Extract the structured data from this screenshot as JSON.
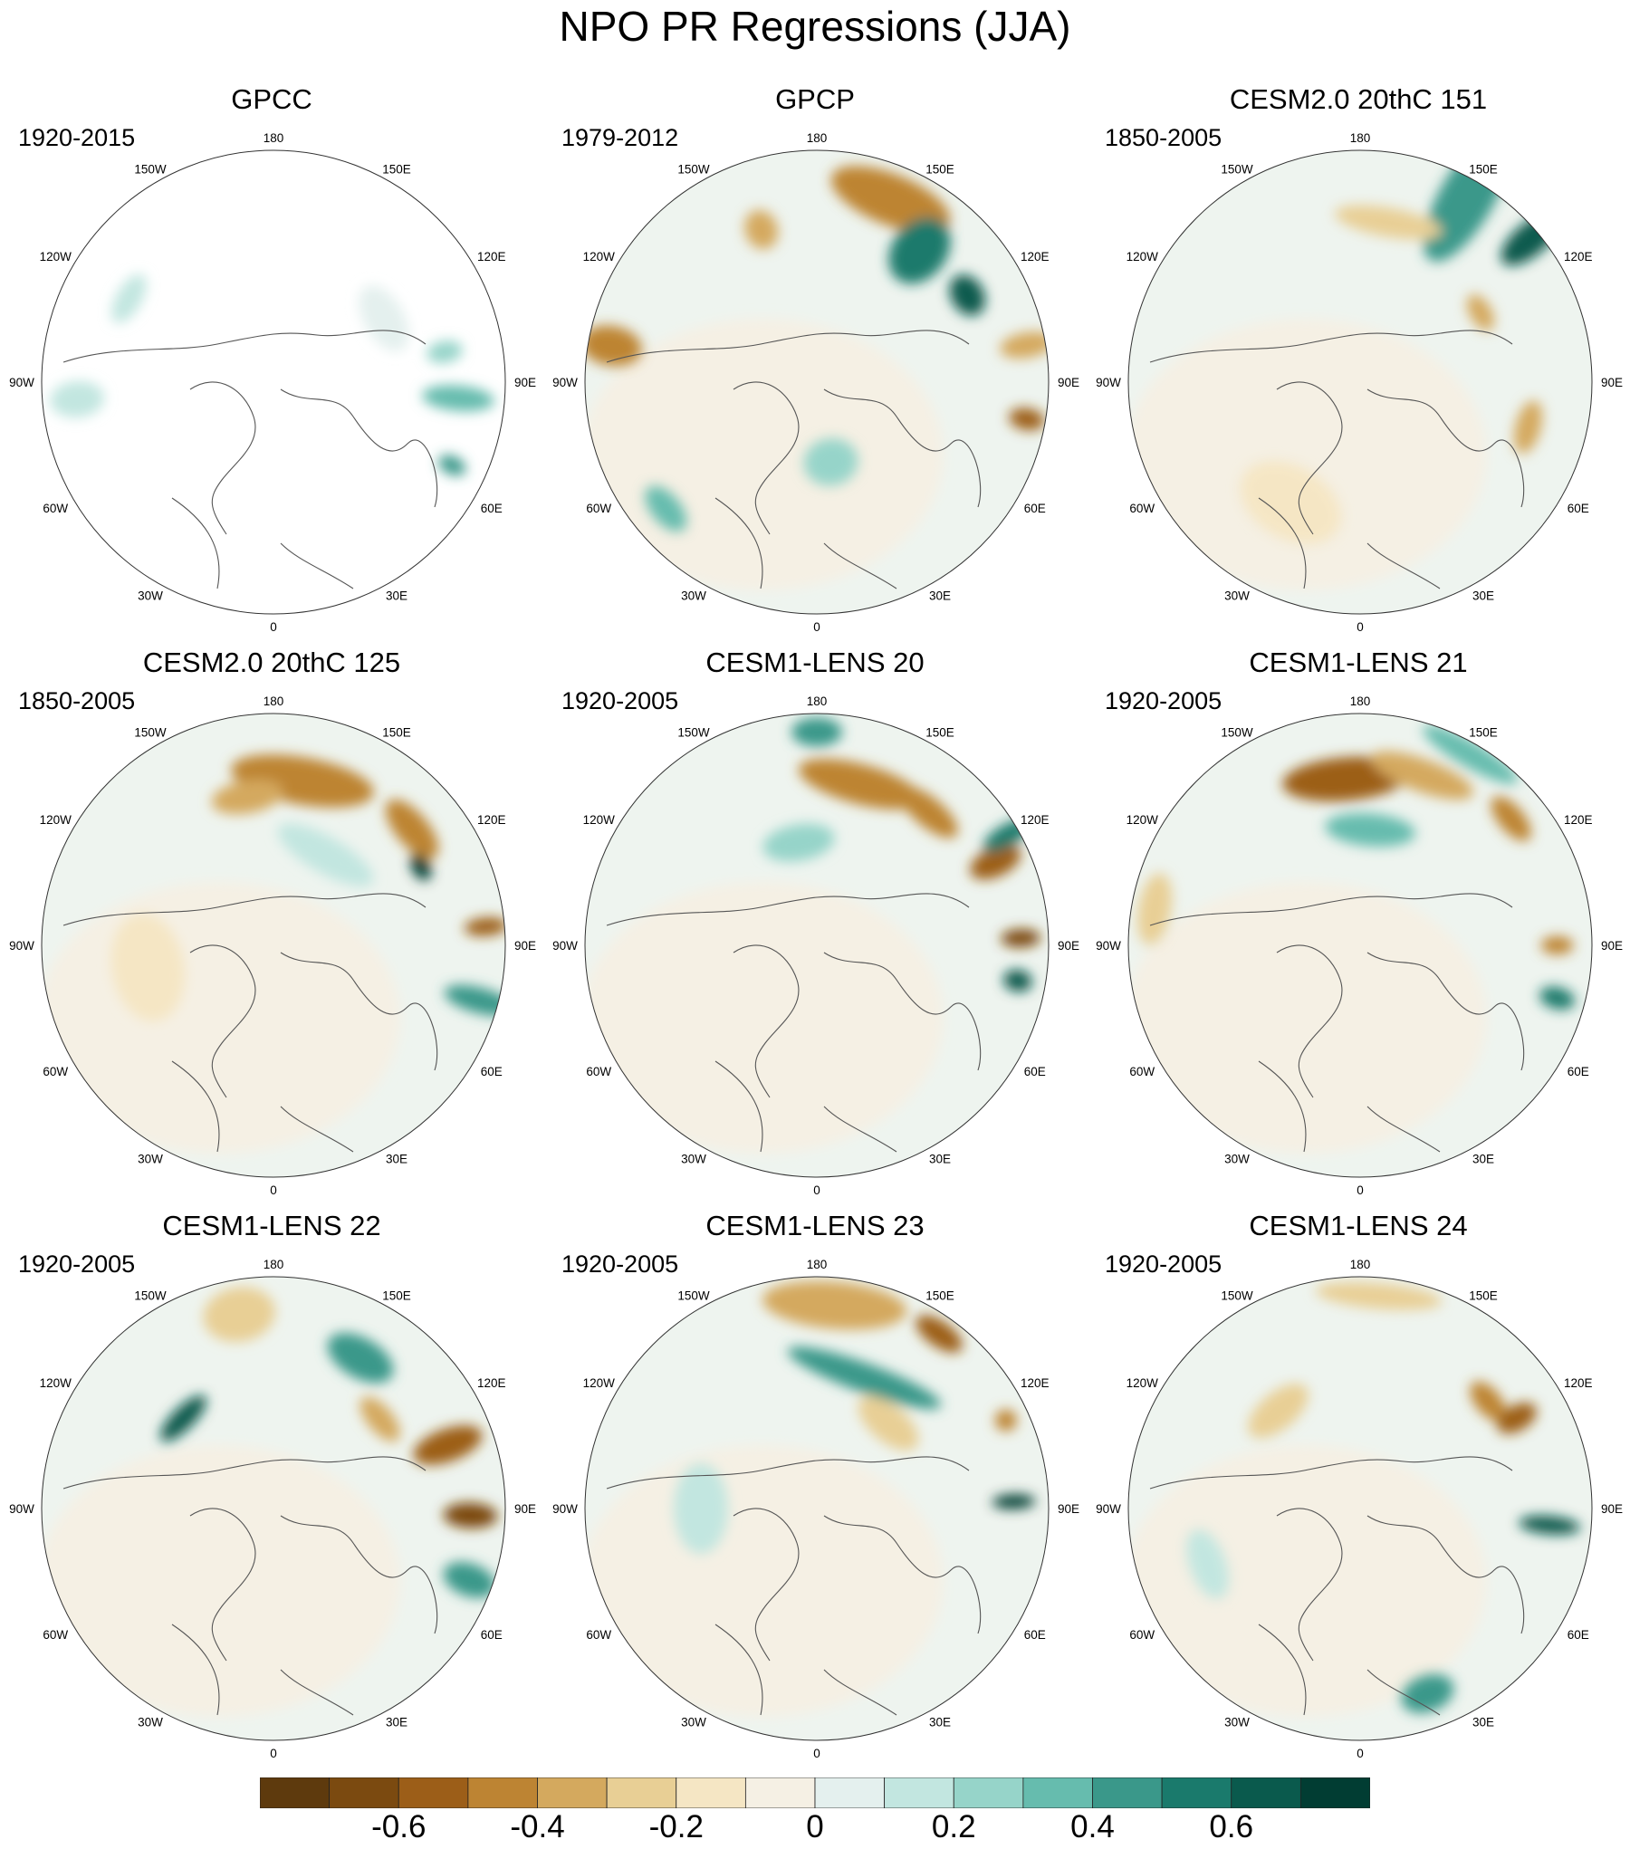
{
  "title": "NPO PR Regressions (JJA)",
  "panels": [
    {
      "name": "GPCC",
      "period": "1920-2015"
    },
    {
      "name": "GPCP",
      "period": "1979-2012"
    },
    {
      "name": "CESM2.0 20thC 151",
      "period": "1850-2005"
    },
    {
      "name": "CESM2.0 20thC 125",
      "period": "1850-2005"
    },
    {
      "name": "CESM1-LENS 20",
      "period": "1920-2005"
    },
    {
      "name": "CESM1-LENS 21",
      "period": "1920-2005"
    },
    {
      "name": "CESM1-LENS 22",
      "period": "1920-2005"
    },
    {
      "name": "CESM1-LENS 23",
      "period": "1920-2005"
    },
    {
      "name": "CESM1-LENS 24",
      "period": "1920-2005"
    }
  ],
  "longitude_labels": {
    "top": "180",
    "bottom": "0",
    "left": "90W",
    "right": "90E",
    "upper_left_1": "150W",
    "upper_left_2": "120W",
    "upper_right_1": "150E",
    "upper_right_2": "120E",
    "lower_left_1": "60W",
    "lower_left_2": "30W",
    "lower_right_1": "60E",
    "lower_right_2": "30E"
  },
  "colorbar": {
    "colors": [
      "#5e3a0d",
      "#7b4a10",
      "#9c5e18",
      "#bd8433",
      "#d4a95e",
      "#e8cf95",
      "#f5e6c4",
      "#f5f0e4",
      "#e4f0ee",
      "#c2e6e0",
      "#96d4c9",
      "#66bcae",
      "#3a988a",
      "#1a7a6c",
      "#0a5a4d",
      "#013d33"
    ],
    "tick_labels": [
      "-0.6",
      "-0.4",
      "-0.2",
      "0",
      "0.2",
      "0.4",
      "0.6"
    ],
    "tick_values": [
      -0.6,
      -0.4,
      -0.2,
      0,
      0.2,
      0.4,
      0.6
    ],
    "range": [
      -0.8,
      0.8
    ]
  }
}
